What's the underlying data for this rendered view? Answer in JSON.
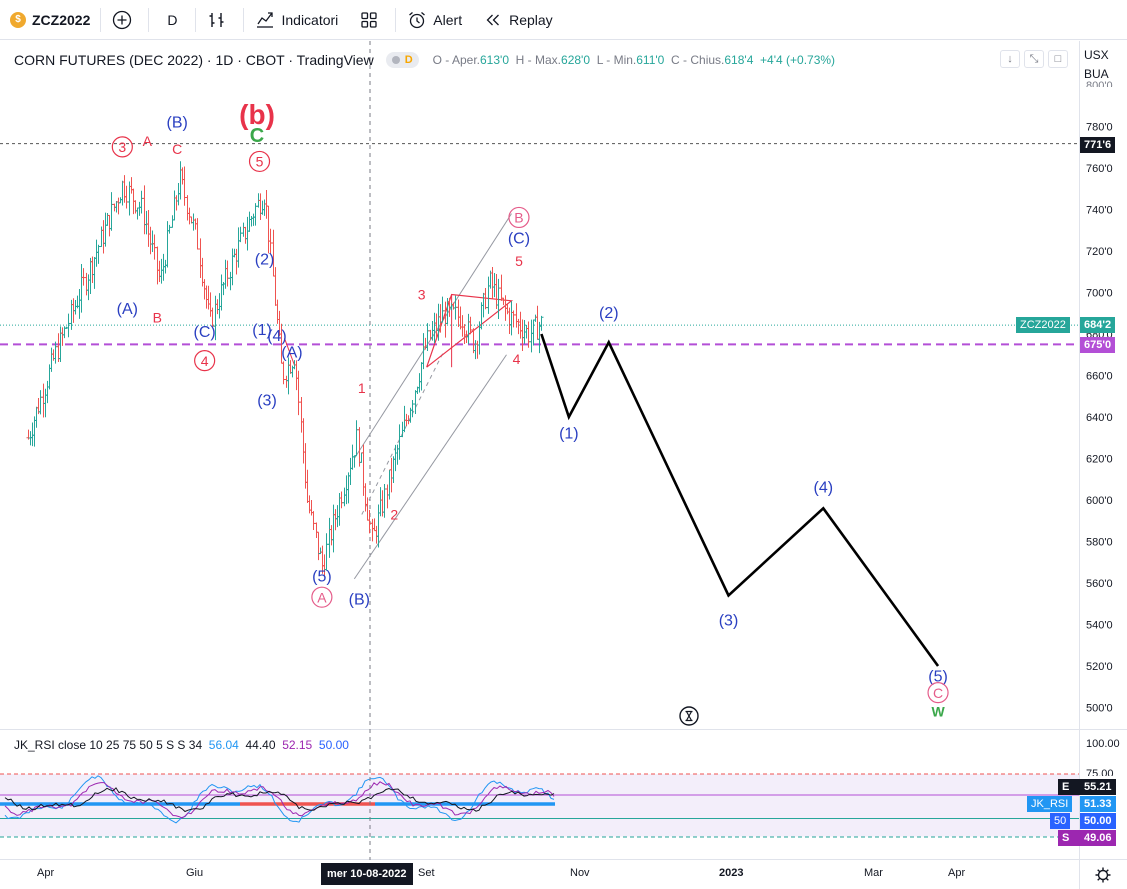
{
  "toolbar": {
    "symbol": "ZCZ2022",
    "interval": "D",
    "indicators_label": "Indicatori",
    "alert_label": "Alert",
    "replay_label": "Replay"
  },
  "legend": {
    "title": "CORN FUTURES (DEC 2022) · 1D · CBOT · TradingView",
    "badge": "D",
    "ohlc": {
      "o_label": "O - Aper.",
      "o": "613'0",
      "h_label": "H - Max.",
      "h": "628'0",
      "l_label": "L - Min.",
      "l": "611'0",
      "c_label": "C - Chius.",
      "c": "618'4",
      "change": "+4'4 (+0.73%)"
    }
  },
  "price_scale": {
    "currency": "USX",
    "currency2": "BUA",
    "top_cut": "800'0",
    "tags": {
      "resistance": "771'6",
      "last_name": "ZCZ2022",
      "last": "684'2",
      "support": "675'0"
    }
  },
  "rsi": {
    "legend_name": "JK_RSI close 10 25 75 50 5 S S 34",
    "v1": "56.04",
    "v2": "44.40",
    "v3": "52.15",
    "v4": "50.00",
    "scale": [
      "100.00",
      "75.00"
    ],
    "tags": {
      "e_letter": "E",
      "e": "55.21",
      "name": "JK_RSI",
      "val": "51.33",
      "mid_label": "50",
      "mid": "50.00",
      "s_letter": "S",
      "s": "49.06"
    }
  },
  "time_axis": {
    "labels": [
      "Apr",
      "Giu",
      "Set",
      "Nov",
      "2023",
      "Mar",
      "Apr"
    ],
    "crosshair": "mer 10-08-2022"
  },
  "chart_data": {
    "type": "bar",
    "title": "CORN FUTURES (DEC 2022)",
    "xlabel": "",
    "ylabel": "",
    "ylim": [
      490,
      790
    ],
    "y_ticks": [
      500,
      520,
      540,
      560,
      580,
      600,
      620,
      640,
      660,
      680,
      700,
      720,
      740,
      760,
      780
    ],
    "y_tick_labels": [
      "500'0",
      "520'0",
      "540'0",
      "560'0",
      "580'0",
      "600'0",
      "620'0",
      "640'0",
      "660'0",
      "680'0",
      "700'0",
      "720'0",
      "740'0",
      "760'0",
      "780'0"
    ],
    "horizontal_levels": {
      "resistance": 771.75,
      "support": 675.0,
      "last_price": 684.25
    },
    "price_path": [
      [
        "2022-03-25",
        630
      ],
      [
        "2022-04-05",
        670
      ],
      [
        "2022-04-20",
        715
      ],
      [
        "2022-05-02",
        752
      ],
      [
        "2022-05-10",
        740
      ],
      [
        "2022-05-17",
        705
      ],
      [
        "2022-05-25",
        755
      ],
      [
        "2022-06-01",
        725
      ],
      [
        "2022-06-06",
        685
      ],
      [
        "2022-06-15",
        715
      ],
      [
        "2022-06-24",
        740
      ],
      [
        "2022-06-28",
        748
      ],
      [
        "2022-07-05",
        660
      ],
      [
        "2022-07-10",
        670
      ],
      [
        "2022-07-15",
        600
      ],
      [
        "2022-07-21",
        568
      ],
      [
        "2022-07-28",
        600
      ],
      [
        "2022-08-04",
        630
      ],
      [
        "2022-08-10",
        580
      ],
      [
        "2022-08-17",
        610
      ],
      [
        "2022-08-24",
        640
      ],
      [
        "2022-09-01",
        676
      ],
      [
        "2022-09-08",
        690
      ],
      [
        "2022-09-15",
        688
      ],
      [
        "2022-09-20",
        675
      ],
      [
        "2022-09-26",
        705
      ],
      [
        "2022-10-03",
        690
      ],
      [
        "2022-10-12",
        680
      ],
      [
        "2022-10-17",
        685
      ]
    ],
    "projection": [
      [
        "2022-10-17",
        680
      ],
      [
        "2022-10-28",
        640
      ],
      [
        "2022-11-13",
        676
      ],
      [
        "2022-12-31",
        554
      ],
      [
        "2023-02-07",
        596
      ],
      [
        "2023-03-25",
        520
      ]
    ],
    "wave_labels": [
      {
        "text": "(b)",
        "x": "2022-06-25",
        "y": 782
      },
      {
        "text": "C",
        "x": "2022-06-25",
        "y": 773
      },
      {
        "text": "3",
        "x": "2022-05-02",
        "y": 768
      },
      {
        "text": "A",
        "x": "2022-05-12",
        "y": 771
      },
      {
        "text": "(B)",
        "x": "2022-05-24",
        "y": 780
      },
      {
        "text": "C",
        "x": "2022-05-24",
        "y": 767
      },
      {
        "text": "5",
        "x": "2022-06-26",
        "y": 761
      },
      {
        "text": "(A)",
        "x": "2022-05-04",
        "y": 690
      },
      {
        "text": "B",
        "x": "2022-05-16",
        "y": 686
      },
      {
        "text": "(C)",
        "x": "2022-06-04",
        "y": 679
      },
      {
        "text": "4",
        "x": "2022-06-04",
        "y": 665
      },
      {
        "text": "(2)",
        "x": "2022-06-28",
        "y": 714
      },
      {
        "text": "(1)",
        "x": "2022-06-27",
        "y": 680
      },
      {
        "text": "(4)",
        "x": "2022-07-03",
        "y": 677
      },
      {
        "text": "(A)",
        "x": "2022-07-09",
        "y": 669
      },
      {
        "text": "(3)",
        "x": "2022-06-29",
        "y": 646
      },
      {
        "text": "(5)",
        "x": "2022-07-21",
        "y": 561
      },
      {
        "text": "A",
        "x": "2022-07-21",
        "y": 551
      },
      {
        "text": "(B)",
        "x": "2022-08-05",
        "y": 550
      },
      {
        "text": "1",
        "x": "2022-08-06",
        "y": 652
      },
      {
        "text": "2",
        "x": "2022-08-19",
        "y": 591
      },
      {
        "text": "3",
        "x": "2022-08-30",
        "y": 697
      },
      {
        "text": "4",
        "x": "2022-10-07",
        "y": 666
      },
      {
        "text": "5",
        "x": "2022-10-08",
        "y": 713
      },
      {
        "text": "(C)",
        "x": "2022-10-08",
        "y": 724
      },
      {
        "text": "B",
        "x": "2022-10-08",
        "y": 734
      },
      {
        "text": "(1)",
        "x": "2022-10-28",
        "y": 630
      },
      {
        "text": "(2)",
        "x": "2022-11-13",
        "y": 688
      },
      {
        "text": "(3)",
        "x": "2022-12-31",
        "y": 540
      },
      {
        "text": "(4)",
        "x": "2023-02-07",
        "y": 604
      },
      {
        "text": "(5)",
        "x": "2023-03-25",
        "y": 513
      },
      {
        "text": "C",
        "x": "2023-03-25",
        "y": 505
      },
      {
        "text": "W",
        "x": "2023-03-25",
        "y": 496
      }
    ],
    "indicator": {
      "name": "JK_RSI",
      "ylim": [
        45,
        100
      ],
      "levels": [
        75,
        50
      ],
      "last": {
        "E": 55.21,
        "rsi": 51.33,
        "mid": 50.0,
        "S": 49.06
      }
    }
  },
  "colors": {
    "up_bar": "#26a69a",
    "down_bar": "#ef5350",
    "wave_blue": "#2a3fc1",
    "wave_red": "#e8334a",
    "wave_green": "#3aa74a",
    "support": "#b34fd6",
    "projection": "#000000"
  }
}
